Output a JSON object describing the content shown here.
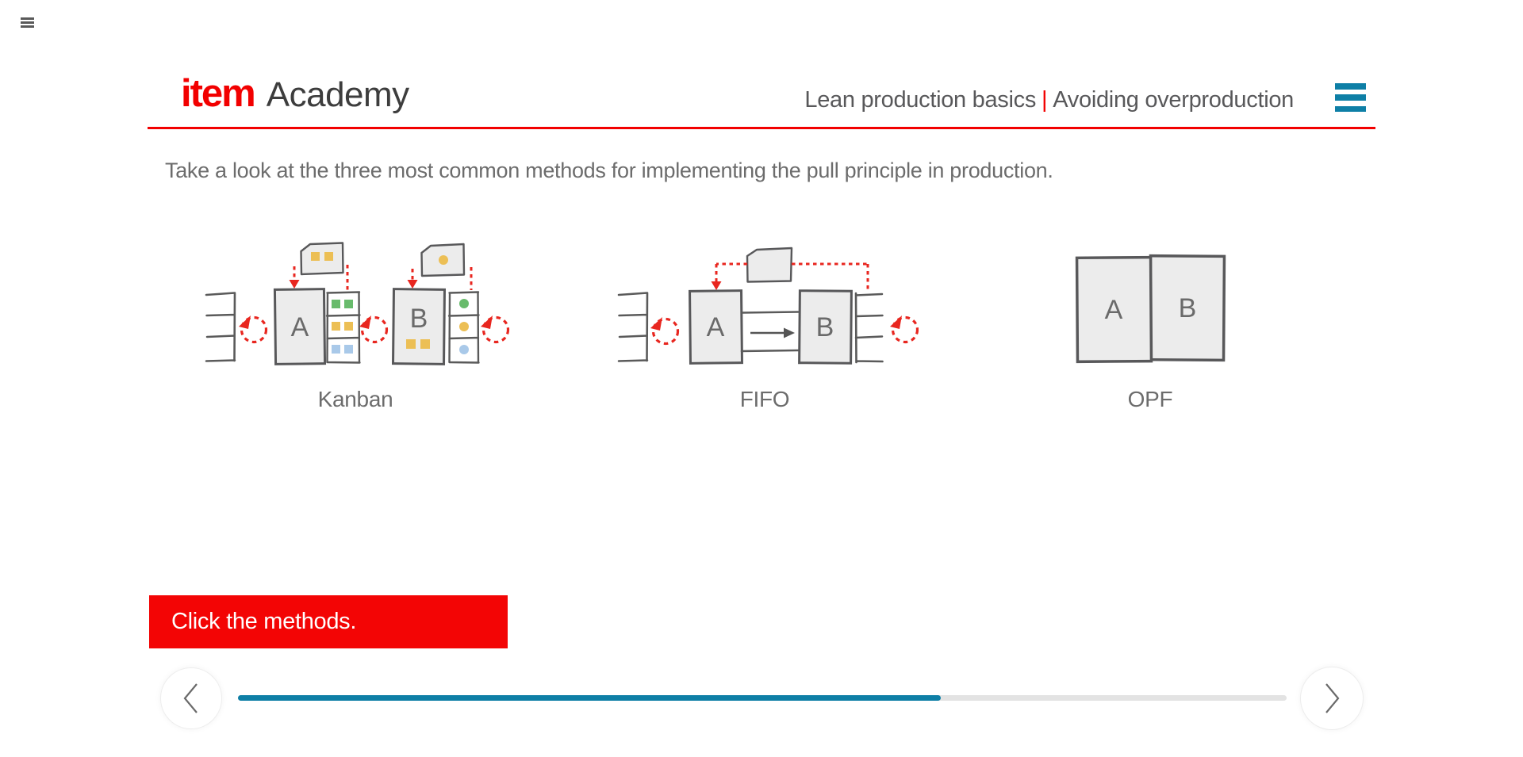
{
  "app": {
    "corner_menu_icon": "menu"
  },
  "header": {
    "logo_primary": "item",
    "logo_secondary": "Academy",
    "course_title": "Lean production basics",
    "separator": "|",
    "lesson_title": "Avoiding overproduction"
  },
  "main": {
    "instruction": "Take a look at the three most common methods for implementing the pull principle in production.",
    "prompt": "Click the methods."
  },
  "methods": [
    {
      "id": "kanban",
      "label": "Kanban"
    },
    {
      "id": "fifo",
      "label": "FIFO"
    },
    {
      "id": "opf",
      "label": "OPF"
    }
  ],
  "diagrams": {
    "kanban": {
      "station_a": "A",
      "station_b": "B"
    },
    "fifo": {
      "station_a": "A",
      "station_b": "B"
    },
    "opf": {
      "station_a": "A",
      "station_b": "B"
    }
  },
  "navigation": {
    "progress_percent": 67
  },
  "colors": {
    "brand_red": "#f20000",
    "banner_red": "#f30505",
    "teal": "#0e7fa6",
    "text_gray": "#6c6c6c",
    "diagram_red": "#e8261f",
    "diagram_yellow": "#ecbf55",
    "diagram_green": "#68bb6c",
    "diagram_blue": "#a9c9e9"
  }
}
